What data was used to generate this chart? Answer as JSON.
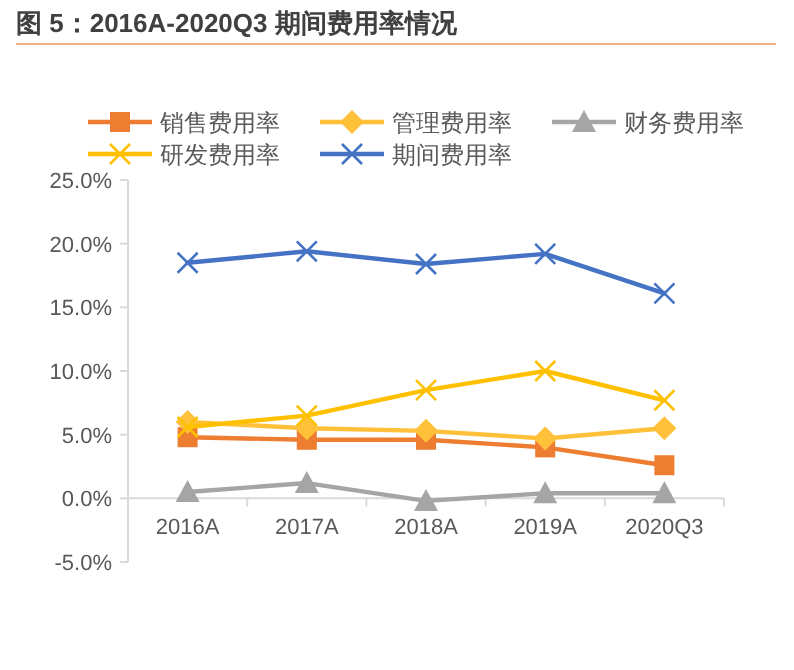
{
  "chart_data": {
    "type": "line",
    "title": "图 5：2016A-2020Q3 期间费用率情况",
    "categories": [
      "2016A",
      "2017A",
      "2018A",
      "2019A",
      "2020Q3"
    ],
    "series": [
      {
        "name": "销售费用率",
        "color": "#ed7d31",
        "marker": "square",
        "values": [
          4.8,
          4.6,
          4.6,
          4.0,
          2.6
        ]
      },
      {
        "name": "管理费用率",
        "color": "#ffc03a",
        "marker": "diamond",
        "values": [
          6.0,
          5.5,
          5.3,
          4.7,
          5.5
        ]
      },
      {
        "name": "财务费用率",
        "color": "#a5a5a5",
        "marker": "triangle",
        "values": [
          0.5,
          1.2,
          -0.2,
          0.4,
          0.4
        ]
      },
      {
        "name": "研发费用率",
        "color": "#ffc000",
        "marker": "cross",
        "values": [
          5.6,
          6.5,
          8.5,
          10.0,
          7.7
        ]
      },
      {
        "name": "期间费用率",
        "color": "#4472c4",
        "marker": "cross",
        "values": [
          18.5,
          19.4,
          18.4,
          19.2,
          16.1
        ]
      }
    ],
    "ylim": [
      -5,
      25
    ],
    "yticks": [
      {
        "value": -5,
        "label": "-5.0%"
      },
      {
        "value": 0,
        "label": "0.0%"
      },
      {
        "value": 5,
        "label": "5.0%"
      },
      {
        "value": 10,
        "label": "10.0%"
      },
      {
        "value": 15,
        "label": "15.0%"
      },
      {
        "value": 20,
        "label": "20.0%"
      },
      {
        "value": 25,
        "label": "25.0%"
      }
    ],
    "legend": "top",
    "line_style": "solid"
  }
}
